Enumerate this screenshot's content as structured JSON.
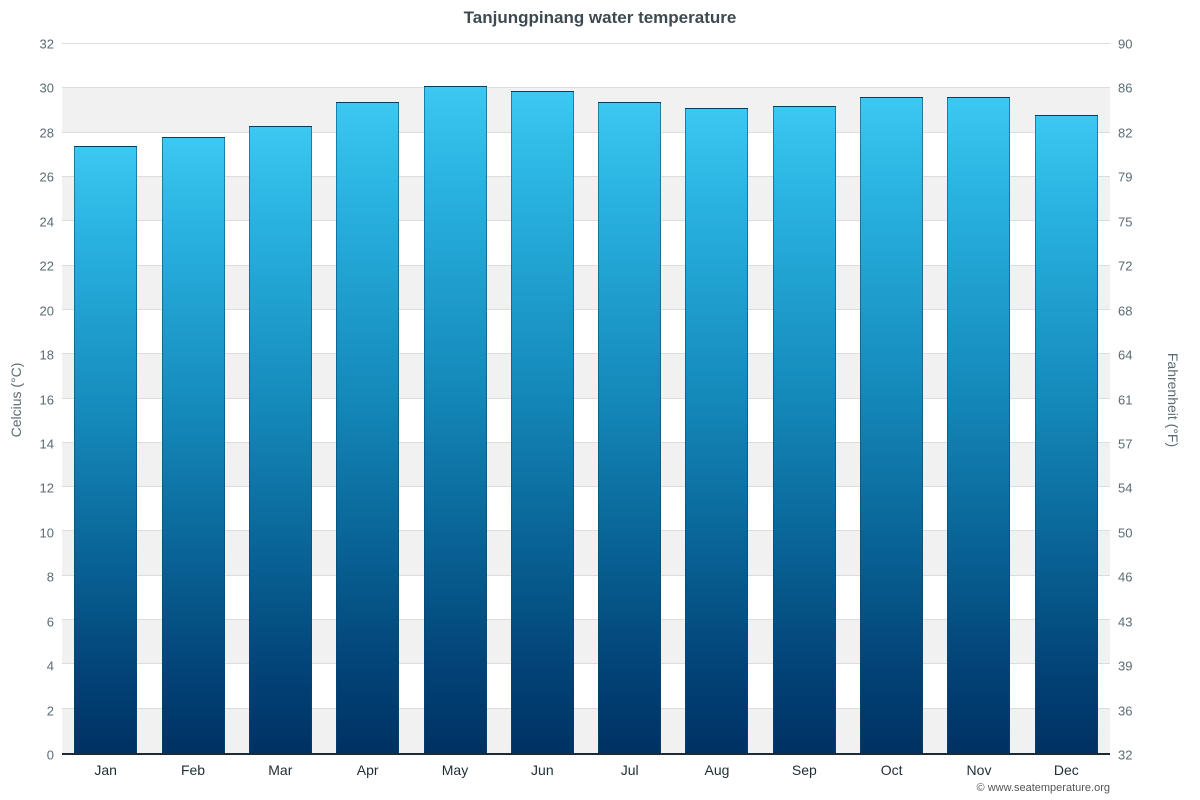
{
  "title": "Tanjungpinang water temperature",
  "footer": "© www.seatemperature.org",
  "chart_data": {
    "type": "bar",
    "title": "Tanjungpinang water temperature",
    "categories": [
      "Jan",
      "Feb",
      "Mar",
      "Apr",
      "May",
      "Jun",
      "Jul",
      "Aug",
      "Sep",
      "Oct",
      "Nov",
      "Dec"
    ],
    "values": [
      27.4,
      27.8,
      28.3,
      29.4,
      30.1,
      29.9,
      29.4,
      29.1,
      29.2,
      29.6,
      29.6,
      28.8
    ],
    "unit": "°C",
    "ylabel_left": "Celcius (°C)",
    "ylabel_right": "Fahrenheit (°F)",
    "ylim": [
      0,
      32
    ],
    "yticks_celsius": [
      0,
      2,
      4,
      6,
      8,
      10,
      12,
      14,
      16,
      18,
      20,
      22,
      24,
      26,
      28,
      30,
      32
    ],
    "yticks_fahrenheit": [
      32,
      36,
      39,
      43,
      46,
      50,
      54,
      57,
      61,
      64,
      68,
      72,
      75,
      79,
      82,
      86,
      90
    ],
    "grid": true,
    "legend": "none",
    "bar_gradient": [
      "#3bc8f1 0%",
      "#29b2e0 15%",
      "#1489ba 45%",
      "#086092 70%",
      "#024176 88%",
      "#003263 100%"
    ],
    "band_colors": [
      "#ffffff",
      "#f1f1f1"
    ]
  }
}
